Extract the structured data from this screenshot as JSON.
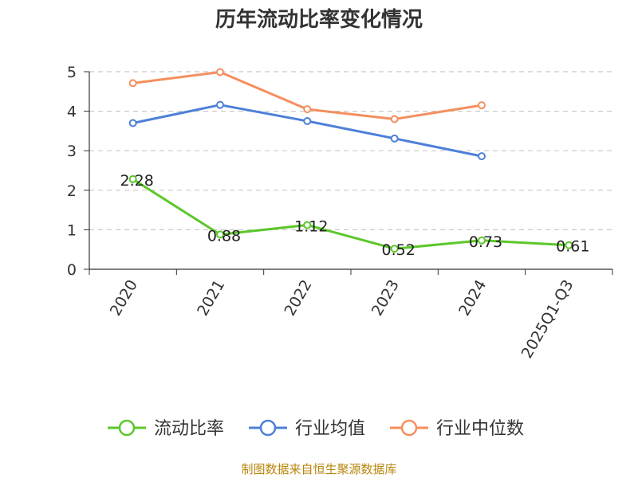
{
  "chart_data": {
    "type": "line",
    "title": "历年流动比率变化情况",
    "categories": [
      "2020",
      "2021",
      "2022",
      "2023",
      "2024",
      "2025Q1-Q3"
    ],
    "y_ticks": [
      "0",
      "1",
      "2",
      "3",
      "4",
      "5"
    ],
    "ylim": [
      0,
      5
    ],
    "grid": "horizontal-dashed",
    "legend_position": "bottom",
    "series": [
      {
        "name": "流动比率",
        "color": "#5cc72a",
        "values": [
          2.28,
          0.88,
          1.12,
          0.52,
          0.73,
          0.61
        ],
        "labels": [
          "2.28",
          "0.88",
          "1.12",
          "0.52",
          "0.73",
          "0.61"
        ],
        "show_labels": true
      },
      {
        "name": "行业均值",
        "color": "#4d80d8",
        "values": [
          3.7,
          4.16,
          3.75,
          3.31,
          2.86,
          null
        ],
        "show_labels": false
      },
      {
        "name": "行业中位数",
        "color": "#f58f5e",
        "values": [
          4.71,
          4.99,
          4.05,
          3.8,
          4.15,
          null
        ],
        "show_labels": false
      }
    ]
  },
  "source_note": "制图数据来自恒生聚源数据库"
}
